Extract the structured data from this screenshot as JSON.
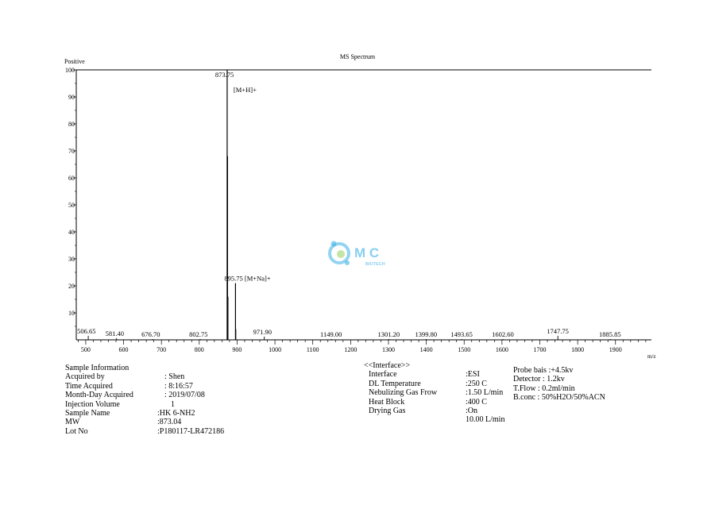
{
  "chart_data": {
    "type": "spectrum",
    "title": "MS Spectrum",
    "polarity": "Positive",
    "xlabel": "m/z",
    "xlim": [
      475,
      1995
    ],
    "ylim": [
      0,
      100
    ],
    "x_ticks": [
      500,
      600,
      700,
      800,
      900,
      1000,
      1100,
      1200,
      1300,
      1400,
      1500,
      1600,
      1700,
      1800,
      1900
    ],
    "y_ticks": [
      10,
      20,
      30,
      40,
      50,
      60,
      70,
      80,
      90,
      100
    ],
    "peaks": [
      {
        "mz": 506.65,
        "intensity": 1.5,
        "label": "506.65"
      },
      {
        "mz": 581.4,
        "intensity": 0.6,
        "label": "581.40"
      },
      {
        "mz": 676.7,
        "intensity": 0.3,
        "label": "676.70"
      },
      {
        "mz": 802.75,
        "intensity": 0.3,
        "label": "802.75"
      },
      {
        "mz": 873.75,
        "intensity": 100,
        "label": "873.75",
        "annotation": "[M+H]+"
      },
      {
        "mz": 874.75,
        "intensity": 68
      },
      {
        "mz": 875.75,
        "intensity": 16
      },
      {
        "mz": 895.75,
        "intensity": 21,
        "label": "895.75 [M+Na]+"
      },
      {
        "mz": 896.75,
        "intensity": 4
      },
      {
        "mz": 971.9,
        "intensity": 1.2,
        "label": "971.90"
      },
      {
        "mz": 1149.0,
        "intensity": 0.3,
        "label": "1149.00"
      },
      {
        "mz": 1301.2,
        "intensity": 0.3,
        "label": "1301.20"
      },
      {
        "mz": 1399.8,
        "intensity": 0.3,
        "label": "1399.80"
      },
      {
        "mz": 1493.65,
        "intensity": 0.3,
        "label": "1493.65"
      },
      {
        "mz": 1602.6,
        "intensity": 0.3,
        "label": "1602.60"
      },
      {
        "mz": 1747.75,
        "intensity": 1.5,
        "label": "1747.75"
      },
      {
        "mz": 1885.85,
        "intensity": 0.3,
        "label": "1885.85"
      }
    ]
  },
  "sample_info": {
    "heading": "Sample Information",
    "rows": [
      {
        "label": "Acquired by",
        "value": ": Shen"
      },
      {
        "label": "Time Acquired",
        "value": ": 8:16:57"
      },
      {
        "label": "Month-Day Acquired",
        "value": ": 2019/07/08"
      },
      {
        "label": "Injection Volume",
        "value": "1"
      },
      {
        "label": "Sample Name",
        "value": ":HK 6-NH2"
      },
      {
        "label": "MW",
        "value": ":873.04"
      },
      {
        "label": "Lot No",
        "value": ":P180117-LR472186"
      }
    ]
  },
  "interface": {
    "heading": "<<Interface>>",
    "rows": [
      {
        "label": "Interface",
        "value": ":ESI"
      },
      {
        "label": "DL Temperature",
        "value": ":250 C"
      },
      {
        "label": "Nebulizing Gas Frow",
        "value": ":1.50 L/min"
      },
      {
        "label": "Heat Block",
        "value": ":400 C"
      },
      {
        "label": "Drying Gas",
        "value": ":On"
      },
      {
        "label": "",
        "value": "10.00 L/min"
      }
    ]
  },
  "probe": {
    "rows": [
      "Probe bais :+4.5kv",
      "Detector : 1.2kv",
      "T.Flow : 0.2ml/min",
      "B.conc : 50%H2O/50%ACN"
    ]
  },
  "logo": {
    "text": "M C",
    "subtext": "BIOTECH",
    "color": "#29a8e0"
  }
}
